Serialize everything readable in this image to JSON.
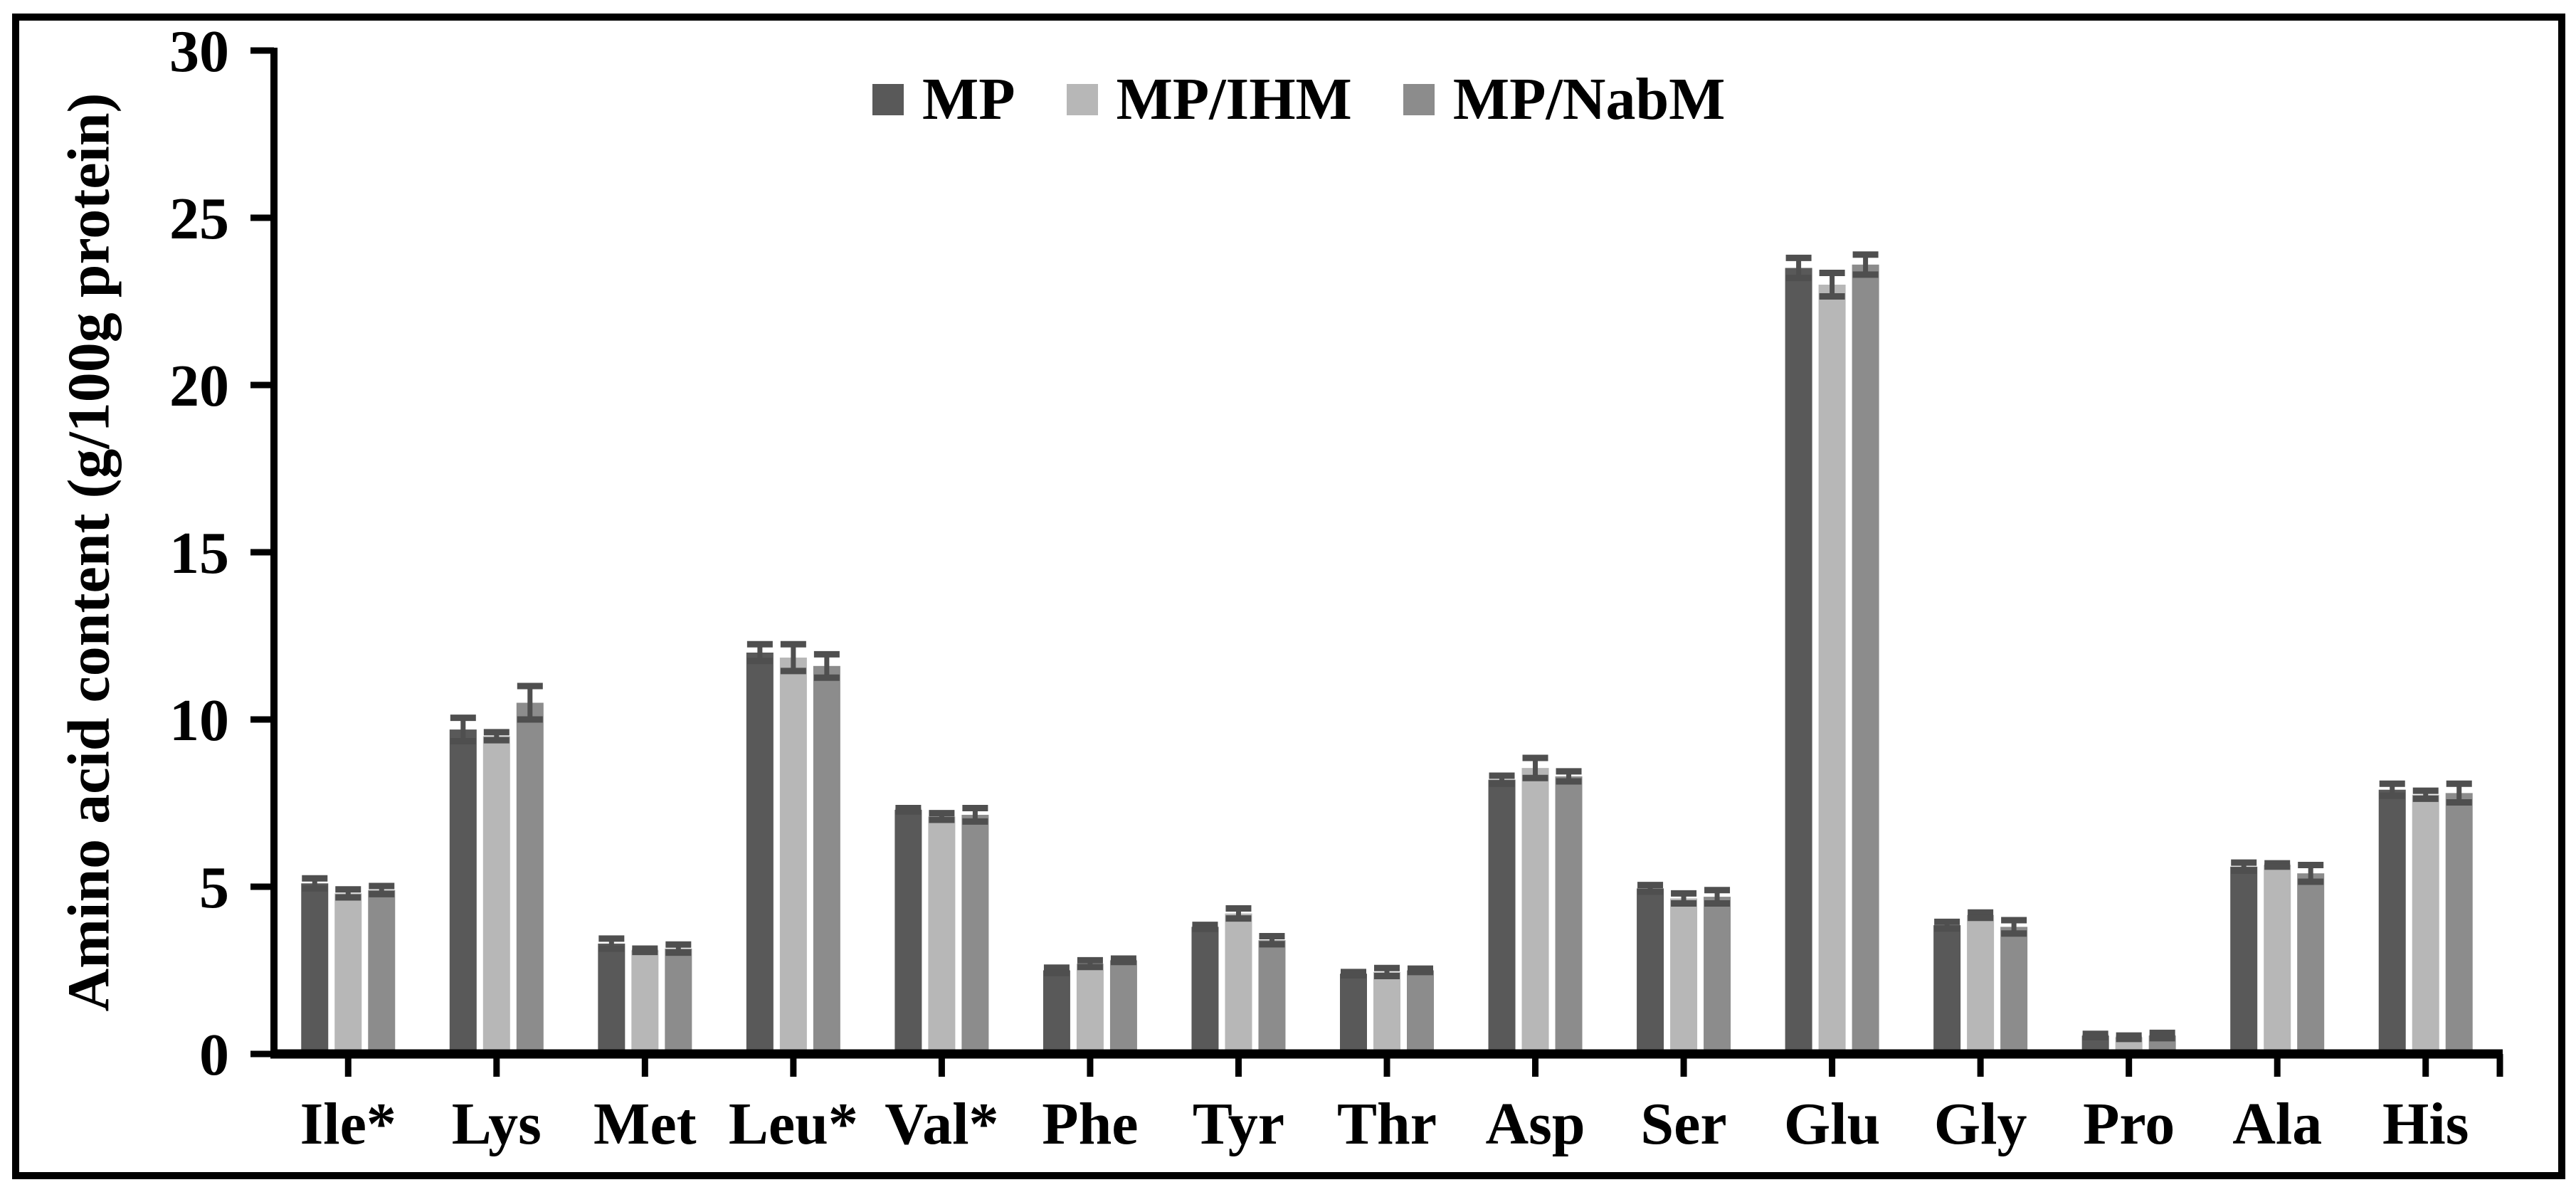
{
  "figure": {
    "background": "#ffffff",
    "frame_color": "#000000"
  },
  "chart_data": {
    "type": "bar",
    "title": "",
    "xlabel": "",
    "ylabel": "Amino acid content (g/100g protein)",
    "ylim": [
      0,
      30
    ],
    "yticks": [
      0,
      5,
      10,
      15,
      20,
      25,
      30
    ],
    "grid": false,
    "legend_position": "top-center",
    "error_bar_color": "#4f4f4f",
    "axis_color": "#000000",
    "categories": [
      "Ile*",
      "Lys",
      "Met",
      "Leu*",
      "Val*",
      "Phe",
      "Tyr",
      "Thr",
      "Asp",
      "Ser",
      "Glu",
      "Gly",
      "Pro",
      "Ala",
      "His"
    ],
    "series": [
      {
        "name": "MP",
        "color": "#595959",
        "values": [
          5.1,
          9.7,
          3.3,
          12.0,
          7.3,
          2.5,
          3.8,
          2.4,
          8.2,
          4.95,
          23.5,
          3.85,
          0.55,
          5.6,
          7.9
        ],
        "errors": [
          0.15,
          0.35,
          0.15,
          0.25,
          0.05,
          0.08,
          0.06,
          0.05,
          0.12,
          0.1,
          0.3,
          0.1,
          0.05,
          0.12,
          0.18
        ]
      },
      {
        "name": "MP/IHM",
        "color": "#b7b7b7",
        "values": [
          4.8,
          9.5,
          3.1,
          11.85,
          7.1,
          2.7,
          4.2,
          2.45,
          8.55,
          4.65,
          23.0,
          4.15,
          0.5,
          5.65,
          7.75
        ],
        "errors": [
          0.12,
          0.12,
          0.05,
          0.4,
          0.1,
          0.1,
          0.15,
          0.12,
          0.3,
          0.15,
          0.35,
          0.08,
          0.05,
          0.05,
          0.12
        ]
      },
      {
        "name": "MP/NabM",
        "color": "#8c8c8c",
        "values": [
          4.9,
          10.5,
          3.15,
          11.6,
          7.15,
          2.8,
          3.4,
          2.5,
          8.3,
          4.7,
          23.6,
          3.8,
          0.55,
          5.4,
          7.8
        ],
        "errors": [
          0.12,
          0.5,
          0.12,
          0.35,
          0.2,
          0.05,
          0.12,
          0.05,
          0.15,
          0.2,
          0.3,
          0.2,
          0.08,
          0.25,
          0.28
        ]
      }
    ]
  }
}
